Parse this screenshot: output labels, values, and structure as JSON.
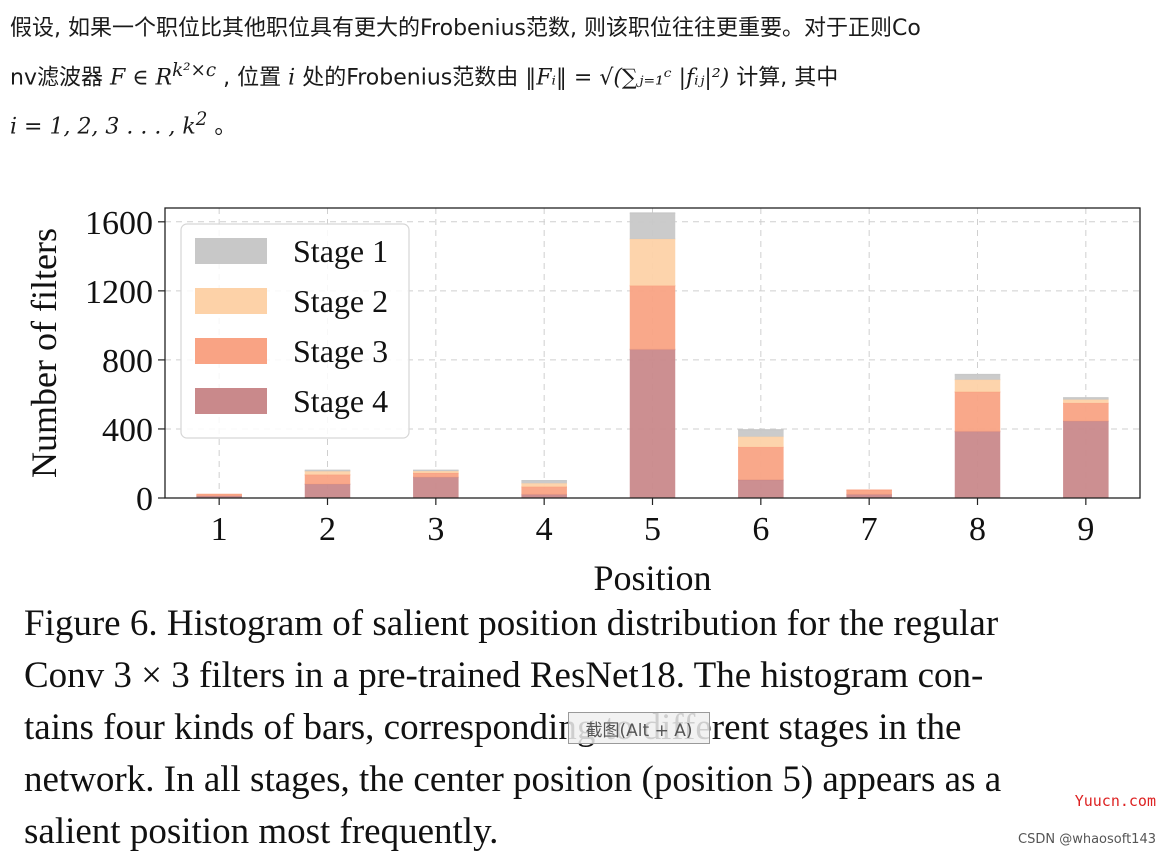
{
  "intro": {
    "line1": "假设, 如果一个职位比其他职位具有更大的Frobenius范数, 则该职位往往更重要。对于正则Co",
    "line2_a": "nv滤波器  ",
    "line2_math1": "F ∈ R",
    "line2_sup1": "k²×c",
    "line2_b": ", 位置  ",
    "line2_math2": "i",
    "line2_c": " 处的Frobenius范数由  ",
    "line2_math3": "‖Fᵢ‖ = √(∑ⱼ₌₁ᶜ |fᵢⱼ|²)",
    "line2_d": " 计算, 其中",
    "line3_math": "i = 1, 2, 3 . . . , k",
    "line3_sup": "2",
    "line3_end": " 。"
  },
  "chart_data": {
    "type": "bar",
    "stacked": true,
    "categories": [
      "1",
      "2",
      "3",
      "4",
      "5",
      "6",
      "7",
      "8",
      "9"
    ],
    "series": [
      {
        "name": "Stage 4",
        "color": "#c9898b",
        "values": [
          12,
          80,
          120,
          20,
          860,
          105,
          20,
          385,
          445
        ]
      },
      {
        "name": "Stage 3",
        "color": "#f9a384",
        "values": [
          8,
          55,
          25,
          45,
          370,
          190,
          25,
          230,
          105
        ]
      },
      {
        "name": "Stage 2",
        "color": "#fdd2a8",
        "values": [
          0,
          20,
          12,
          20,
          270,
          60,
          0,
          70,
          20
        ]
      },
      {
        "name": "Stage 1",
        "color": "#c8c8c8",
        "values": [
          0,
          5,
          3,
          15,
          150,
          40,
          0,
          30,
          10
        ]
      }
    ],
    "legend_order": [
      "Stage 1",
      "Stage 2",
      "Stage 3",
      "Stage 4"
    ],
    "legend_position": "top-left",
    "xlabel": "Position",
    "ylabel": "Number of filters",
    "ylim": [
      0,
      1680
    ],
    "yticks": [
      0,
      400,
      800,
      1200,
      1600
    ],
    "yticklabels": [
      "0",
      "400",
      "800",
      "1200",
      "1600"
    ],
    "grid": true
  },
  "caption": {
    "lines": [
      "Figure 6. Histogram of salient position distribution for the regular",
      "Conv 3 × 3 filters in a pre-trained ResNet18. The histogram con-",
      "tains four kinds of bars, corresponding to different stages in the",
      "network. In all stages, the center position (position 5) appears as a",
      "salient position most frequently."
    ]
  },
  "overlay": {
    "tooltip": "截图(Alt + A)"
  },
  "watermarks": {
    "site": "Yuucn.com",
    "credit": "CSDN @whaosoft143"
  }
}
